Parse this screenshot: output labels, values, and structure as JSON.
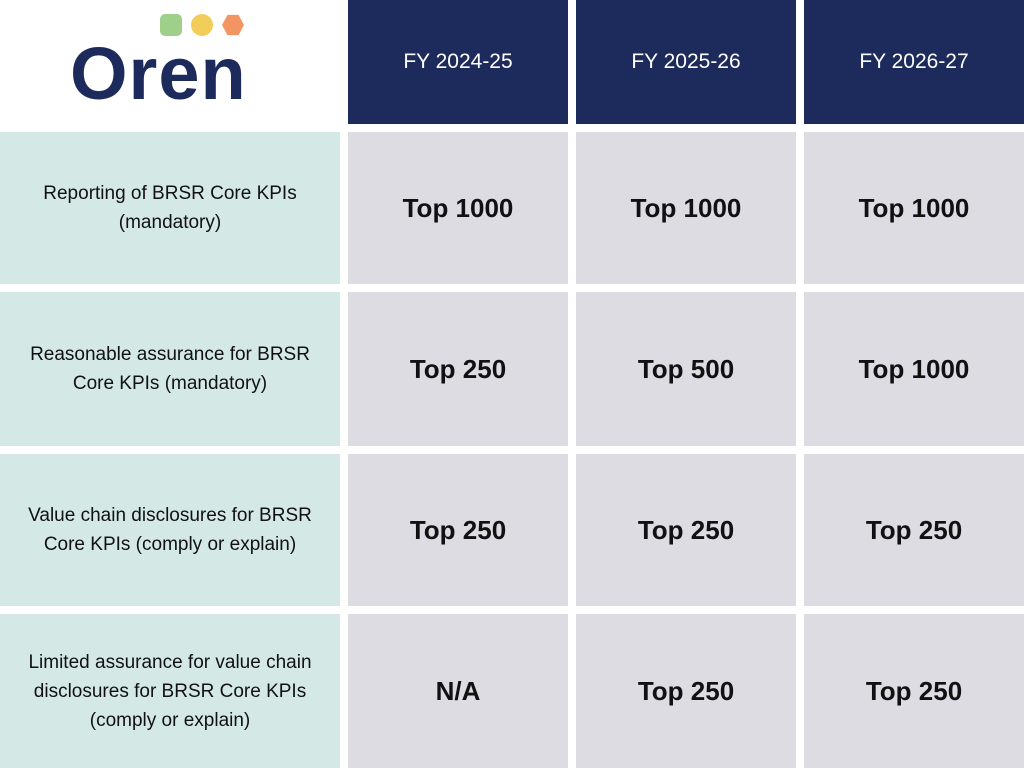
{
  "logo": {
    "text": "Oren",
    "dot_colors": [
      "#9fd08a",
      "#f3cd5a",
      "#f39563"
    ]
  },
  "table": {
    "columns": [
      "FY 2024-25",
      "FY 2025-26",
      "FY 2026-27"
    ],
    "rows": [
      {
        "label": "Reporting of BRSR Core KPIs (mandatory)",
        "values": [
          "Top 1000",
          "Top 1000",
          "Top 1000"
        ]
      },
      {
        "label": "Reasonable assurance for BRSR Core KPIs (mandatory)",
        "values": [
          "Top 250",
          "Top 500",
          "Top 1000"
        ]
      },
      {
        "label": "Value chain disclosures for BRSR Core KPIs (comply or explain)",
        "values": [
          "Top 250",
          "Top 250",
          "Top 250"
        ]
      },
      {
        "label": "Limited assurance for value chain disclosures for BRSR Core KPIs (comply or explain)",
        "values": [
          "N/A",
          "Top 250",
          "Top 250"
        ]
      }
    ]
  },
  "colors": {
    "header_bg": "#1d2a5c",
    "label_bg": "#d4e9e6",
    "value_bg": "#dddce3"
  }
}
